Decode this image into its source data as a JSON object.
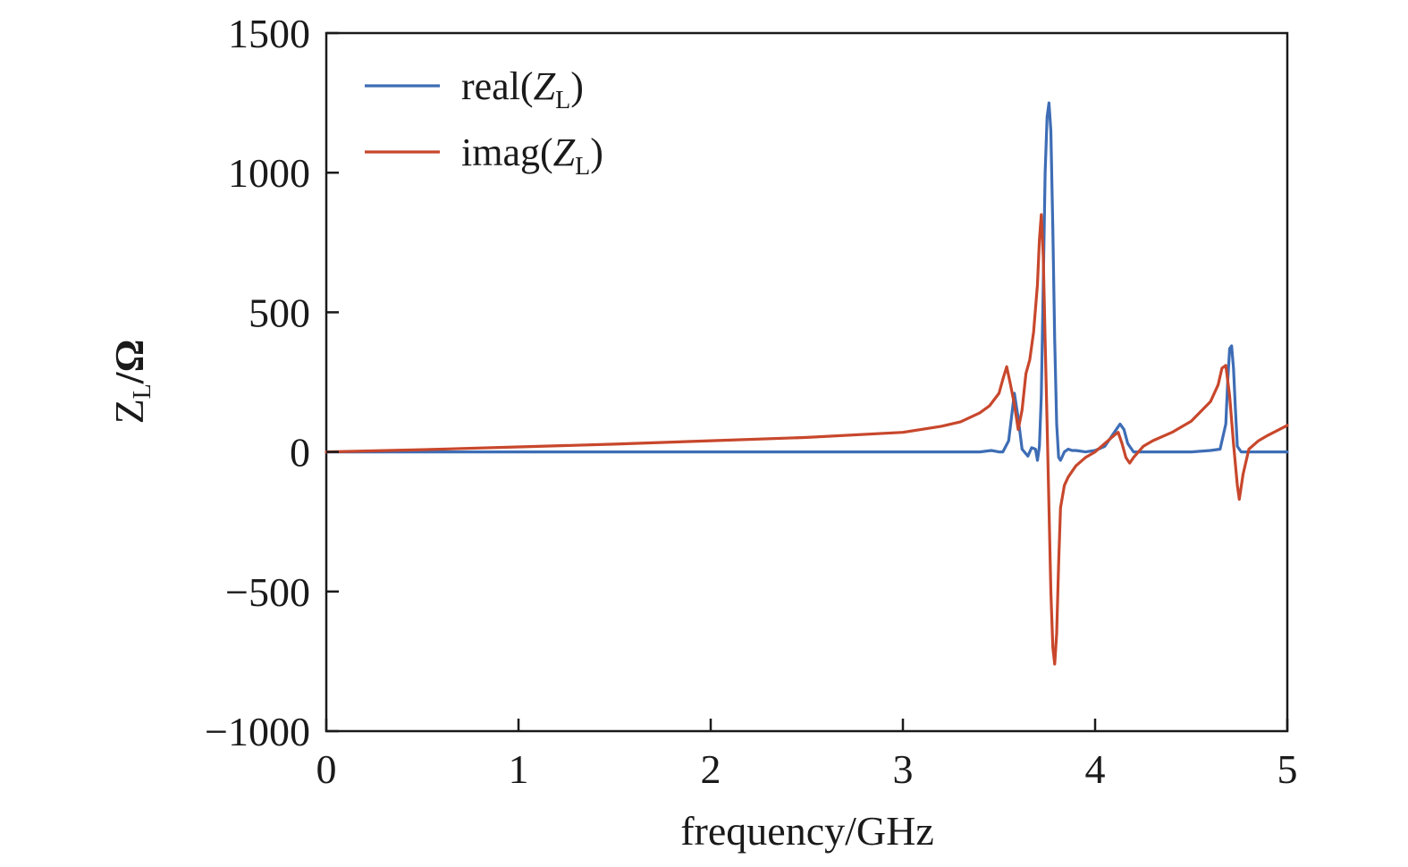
{
  "chart_data": {
    "type": "line",
    "title": "",
    "xlabel": "frequency/GHz",
    "ylabel": {
      "main": "Z",
      "sub": "L",
      "unit": "/Ω"
    },
    "xlim": [
      0,
      5
    ],
    "ylim": [
      -1000,
      1500
    ],
    "xticks": [
      0,
      1,
      2,
      3,
      4,
      5
    ],
    "yticks": [
      -1000,
      -500,
      0,
      500,
      1000,
      1500
    ],
    "xtick_labels": [
      "0",
      "1",
      "2",
      "3",
      "4",
      "5"
    ],
    "ytick_labels": [
      "−1000",
      "−500",
      "0",
      "500",
      "1000",
      "1500"
    ],
    "grid": false,
    "legend_position": "top-left",
    "series": [
      {
        "name": "real(Z_L)",
        "legend": {
          "main": "real(",
          "italic": "Z",
          "sub": "L",
          "close": ")"
        },
        "color": "#3e6db5",
        "x": [
          0,
          0.5,
          1.0,
          1.5,
          2.0,
          2.5,
          3.0,
          3.4,
          3.46,
          3.5,
          3.52,
          3.55,
          3.58,
          3.6,
          3.62,
          3.65,
          3.67,
          3.69,
          3.7,
          3.71,
          3.72,
          3.73,
          3.74,
          3.75,
          3.76,
          3.77,
          3.78,
          3.79,
          3.8,
          3.81,
          3.82,
          3.83,
          3.84,
          3.86,
          3.88,
          3.9,
          3.95,
          4.0,
          4.05,
          4.1,
          4.13,
          4.15,
          4.17,
          4.2,
          4.25,
          4.3,
          4.4,
          4.5,
          4.6,
          4.65,
          4.68,
          4.69,
          4.7,
          4.71,
          4.72,
          4.73,
          4.74,
          4.76,
          4.8,
          4.9,
          5.0
        ],
        "y": [
          0,
          0,
          0,
          0,
          0,
          0,
          0,
          0,
          5,
          0,
          0,
          40,
          210,
          120,
          10,
          -15,
          15,
          10,
          -30,
          20,
          200,
          600,
          1000,
          1200,
          1250,
          1150,
          800,
          400,
          100,
          -20,
          -30,
          -15,
          0,
          10,
          5,
          5,
          0,
          5,
          20,
          70,
          100,
          80,
          30,
          0,
          0,
          0,
          0,
          0,
          5,
          10,
          100,
          250,
          370,
          380,
          300,
          150,
          20,
          0,
          0,
          0,
          0
        ]
      },
      {
        "name": "imag(Z_L)",
        "legend": {
          "main": "imag(",
          "italic": "Z",
          "sub": "L",
          "close": ")"
        },
        "color": "#c8472c",
        "x": [
          0,
          0.5,
          1.0,
          1.5,
          2.0,
          2.5,
          3.0,
          3.2,
          3.3,
          3.4,
          3.45,
          3.5,
          3.52,
          3.54,
          3.56,
          3.58,
          3.6,
          3.62,
          3.64,
          3.66,
          3.68,
          3.7,
          3.71,
          3.72,
          3.73,
          3.74,
          3.75,
          3.76,
          3.77,
          3.78,
          3.79,
          3.8,
          3.81,
          3.82,
          3.84,
          3.86,
          3.9,
          3.95,
          4.0,
          4.05,
          4.1,
          4.12,
          4.14,
          4.16,
          4.18,
          4.2,
          4.25,
          4.3,
          4.4,
          4.5,
          4.6,
          4.64,
          4.66,
          4.68,
          4.7,
          4.72,
          4.74,
          4.75,
          4.77,
          4.8,
          4.85,
          4.9,
          5.0
        ],
        "y": [
          0,
          8,
          18,
          28,
          40,
          52,
          70,
          92,
          108,
          140,
          165,
          210,
          260,
          305,
          240,
          170,
          80,
          150,
          280,
          330,
          430,
          600,
          760,
          850,
          700,
          400,
          100,
          -200,
          -500,
          -700,
          -760,
          -650,
          -400,
          -200,
          -120,
          -90,
          -50,
          -20,
          0,
          30,
          60,
          70,
          30,
          -20,
          -40,
          -20,
          20,
          40,
          70,
          110,
          180,
          240,
          300,
          310,
          200,
          30,
          -120,
          -170,
          -80,
          10,
          40,
          60,
          95
        ]
      }
    ]
  }
}
